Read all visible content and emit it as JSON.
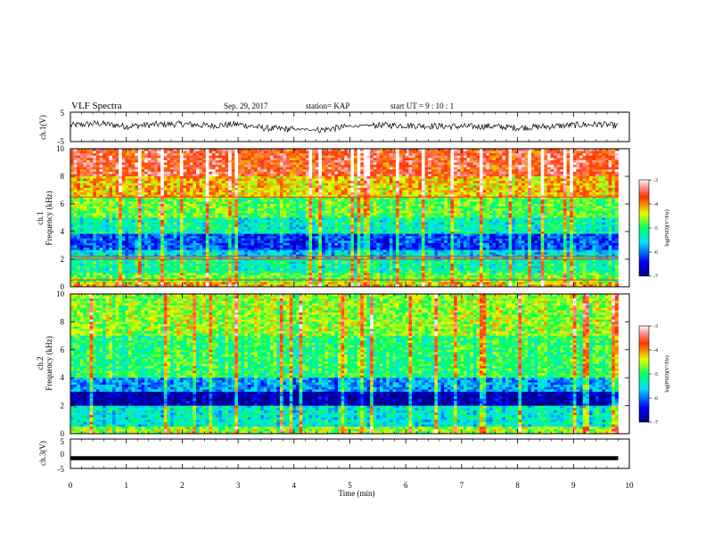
{
  "header": {
    "title": "VLF Spectra",
    "date": "Sep. 29, 2017",
    "station": "station= KAP",
    "start_ut": "start  UT  =   9  : 10 : 1"
  },
  "chart_data": [
    {
      "type": "line",
      "panel": "ch1-waveform",
      "ylabel": "ch.1(V)",
      "ylim": [
        -5,
        5
      ],
      "yticks": [
        "5",
        "-5"
      ],
      "xlim": [
        0,
        10
      ],
      "values_note": "noisy waveform fluctuating roughly between -2 and +2 V",
      "x": [
        0,
        0.5,
        1,
        1.5,
        2,
        2.5,
        3,
        3.5,
        4,
        4.5,
        5,
        5.5,
        6,
        6.5,
        7,
        7.5,
        8,
        8.5,
        9,
        9.5,
        9.8
      ],
      "y": [
        0.5,
        1.2,
        0.2,
        0.8,
        1.0,
        0.4,
        0.9,
        -0.5,
        -0.8,
        -1.0,
        0.2,
        0.6,
        0.5,
        0.3,
        0.1,
        0.2,
        -0.3,
        0.1,
        0.6,
        0.9,
        0.3
      ]
    },
    {
      "type": "heatmap",
      "panel": "ch1-spectrogram",
      "ylabel": "ch.1",
      "ylabel2": "Frequency (kHz)",
      "ylim": [
        0,
        10
      ],
      "yticks": [
        "0",
        "2",
        "4",
        "6",
        "8",
        "10"
      ],
      "xlim": [
        0,
        9.8
      ],
      "colorbar": {
        "label": "log(PSD)(V²/Hz)",
        "range": [
          -7,
          -3
        ],
        "ticks": [
          "-3",
          "-4",
          "-5",
          "-6",
          "-7"
        ]
      },
      "bands_kHz_logPSD": [
        [
          0,
          0.3,
          -4.2
        ],
        [
          0.3,
          1.0,
          -4.8
        ],
        [
          1.0,
          2.0,
          -5.2
        ],
        [
          2.0,
          2.6,
          -5.6
        ],
        [
          2.6,
          3.8,
          -6.2
        ],
        [
          3.8,
          5.0,
          -5.3
        ],
        [
          5.0,
          6.5,
          -4.8
        ],
        [
          6.5,
          8.0,
          -4.2
        ],
        [
          8.0,
          10.0,
          -3.6
        ]
      ],
      "lines_kHz": [
        0.5,
        2.0,
        2.2,
        6.5
      ]
    },
    {
      "type": "heatmap",
      "panel": "ch2-spectrogram",
      "ylabel": "ch.2",
      "ylabel2": "Frequency (kHz)",
      "ylim": [
        0,
        10
      ],
      "yticks": [
        "0",
        "2",
        "4",
        "6",
        "8",
        "10"
      ],
      "xlim": [
        0,
        9.8
      ],
      "colorbar": {
        "label": "log(PSD)(V²/Hz)",
        "range": [
          -7,
          -3
        ],
        "ticks": [
          "-3",
          "-4",
          "-5",
          "-6",
          "-7"
        ]
      },
      "bands_kHz_logPSD": [
        [
          0,
          0.5,
          -4.6
        ],
        [
          0.5,
          2.0,
          -5.4
        ],
        [
          2.0,
          3.0,
          -6.8
        ],
        [
          3.0,
          4.0,
          -5.8
        ],
        [
          4.0,
          7.0,
          -5.0
        ],
        [
          7.0,
          10.0,
          -4.6
        ]
      ],
      "lines_kHz": []
    },
    {
      "type": "line",
      "panel": "ch3-waveform",
      "ylabel": "ch.3(V)",
      "ylim": [
        -5,
        5
      ],
      "yticks": [
        "5",
        "0",
        "-5"
      ],
      "xlim": [
        0,
        10
      ],
      "x": [
        0,
        9.8
      ],
      "y": [
        -1.5,
        -1.5
      ]
    }
  ],
  "xaxis": {
    "label": "Time (min)",
    "ticks": [
      "0",
      "1",
      "2",
      "3",
      "4",
      "5",
      "6",
      "7",
      "8",
      "9",
      "10"
    ]
  }
}
